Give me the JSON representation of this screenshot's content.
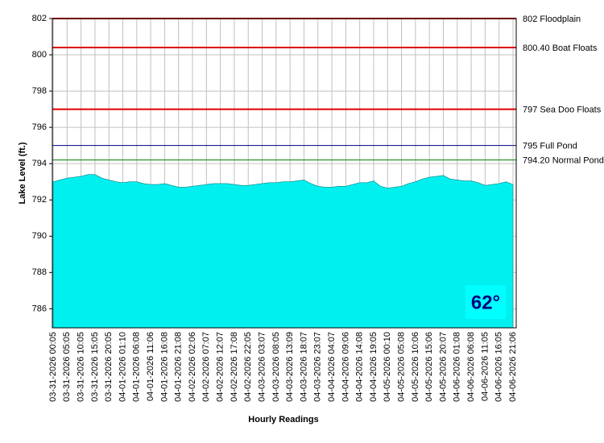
{
  "chart_data": {
    "type": "area",
    "y_label": "Lake Level (ft.)",
    "x_label": "Hourly Readings",
    "annotation": "62°",
    "categories": [
      "03-31-2026 00:05",
      null,
      "03-31-2026 05:05",
      null,
      "03-31-2026 10:05",
      null,
      "03-31-2026 15:05",
      null,
      "03-31-2026 20:05",
      null,
      "04-01-2026 01:10",
      null,
      "04-01-2026 06:08",
      null,
      "04-01-2026 11:06",
      null,
      "04-01-2026 16:08",
      null,
      "04-01-2026 21:08",
      null,
      "04-02-2026 02:06",
      null,
      "04-02-2026 07:07",
      null,
      "04-02-2026 12:07",
      null,
      "04-02-2026 17:08",
      null,
      "04-02-2026 22:05",
      null,
      "04-03-2026 03:07",
      null,
      "04-03-2026 08:05",
      null,
      "04-03-2026 13:09",
      null,
      "04-03-2026 18:07",
      null,
      "04-03-2026 23:07",
      null,
      "04-04-2026 04:07",
      null,
      "04-04-2026 09:06",
      null,
      "04-04-2026 14:08",
      null,
      "04-04-2026 19:05",
      null,
      "04-05-2026 00:10",
      null,
      "04-05-2026 05:08",
      null,
      "04-05-2026 10:06",
      null,
      "04-05-2026 15:06",
      null,
      "04-05-2026 20:07",
      null,
      "04-06-2026 01:08",
      null,
      "04-06-2026 06:08",
      null,
      "04-06-2026 11:05",
      null,
      "04-06-2026 16:05",
      null,
      "04-06-2026 21:06"
    ],
    "series": [
      {
        "color": "#00f0f0",
        "values": [
          793.0,
          793.1,
          793.2,
          793.25,
          793.3,
          793.4,
          793.4,
          793.2,
          793.1,
          793.0,
          792.95,
          793.0,
          793.0,
          792.9,
          792.85,
          792.85,
          792.9,
          792.8,
          792.7,
          792.7,
          792.75,
          792.8,
          792.85,
          792.9,
          792.9,
          792.9,
          792.85,
          792.8,
          792.8,
          792.85,
          792.9,
          792.95,
          792.95,
          793.0,
          793.0,
          793.05,
          793.1,
          792.9,
          792.75,
          792.7,
          792.7,
          792.75,
          792.75,
          792.85,
          792.95,
          792.95,
          793.05,
          792.75,
          792.65,
          792.7,
          792.75,
          792.9,
          793.0,
          793.15,
          793.25,
          793.3,
          793.35,
          793.15,
          793.1,
          793.05,
          793.05,
          792.95,
          792.8,
          792.85,
          792.9,
          793.0,
          792.85
        ]
      }
    ],
    "reference_lines": [
      {
        "value": 802,
        "label": "802 Floodplain",
        "color": "#dd0000"
      },
      {
        "value": 800.4,
        "label": "800.40 Boat Floats",
        "color": "#dd0000"
      },
      {
        "value": 797,
        "label": "797 Sea Doo Floats",
        "color": "#dd0000"
      },
      {
        "value": 795,
        "label": "795 Full Pond",
        "color": "#000080"
      },
      {
        "value": 794.2,
        "label": "794.20 Normal Pond",
        "color": "#008000"
      }
    ],
    "ylim": [
      784.95,
      802
    ],
    "yticks": [
      786,
      788,
      790,
      792,
      794,
      796,
      798,
      800,
      802
    ],
    "grid": true
  }
}
